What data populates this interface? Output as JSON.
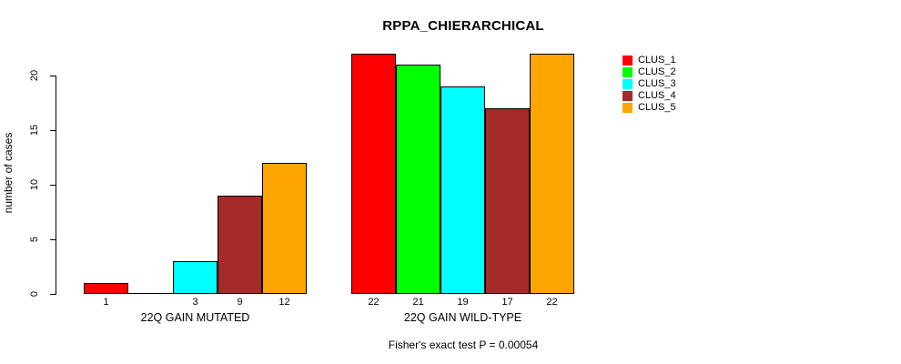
{
  "title": "RPPA_CHIERARCHICAL",
  "ylabel": "number of cases",
  "footer": "Fisher's exact test P = 0.00054",
  "chart_data": {
    "type": "bar",
    "title": "RPPA_CHIERARCHICAL",
    "xlabel": "",
    "ylabel": "number of cases",
    "ylim": [
      0,
      22
    ],
    "yticks": [
      0,
      5,
      10,
      15,
      20
    ],
    "grid": false,
    "legend_position": "right-outside",
    "series_names": [
      "CLUS_1",
      "CLUS_2",
      "CLUS_3",
      "CLUS_4",
      "CLUS_5"
    ],
    "series_colors": [
      "#ff0000",
      "#00ff00",
      "#00ffff",
      "#a52a2a",
      "#ffa500"
    ],
    "groups": [
      {
        "label": "22Q GAIN MUTATED",
        "values": [
          1,
          0,
          3,
          9,
          12
        ],
        "bar_labels": [
          "1",
          "",
          "3",
          "9",
          "12"
        ]
      },
      {
        "label": "22Q GAIN WILD-TYPE",
        "values": [
          22,
          21,
          19,
          17,
          22
        ],
        "bar_labels": [
          "22",
          "21",
          "19",
          "17",
          "22"
        ]
      }
    ],
    "annotation": "Fisher's exact test P = 0.00054"
  }
}
